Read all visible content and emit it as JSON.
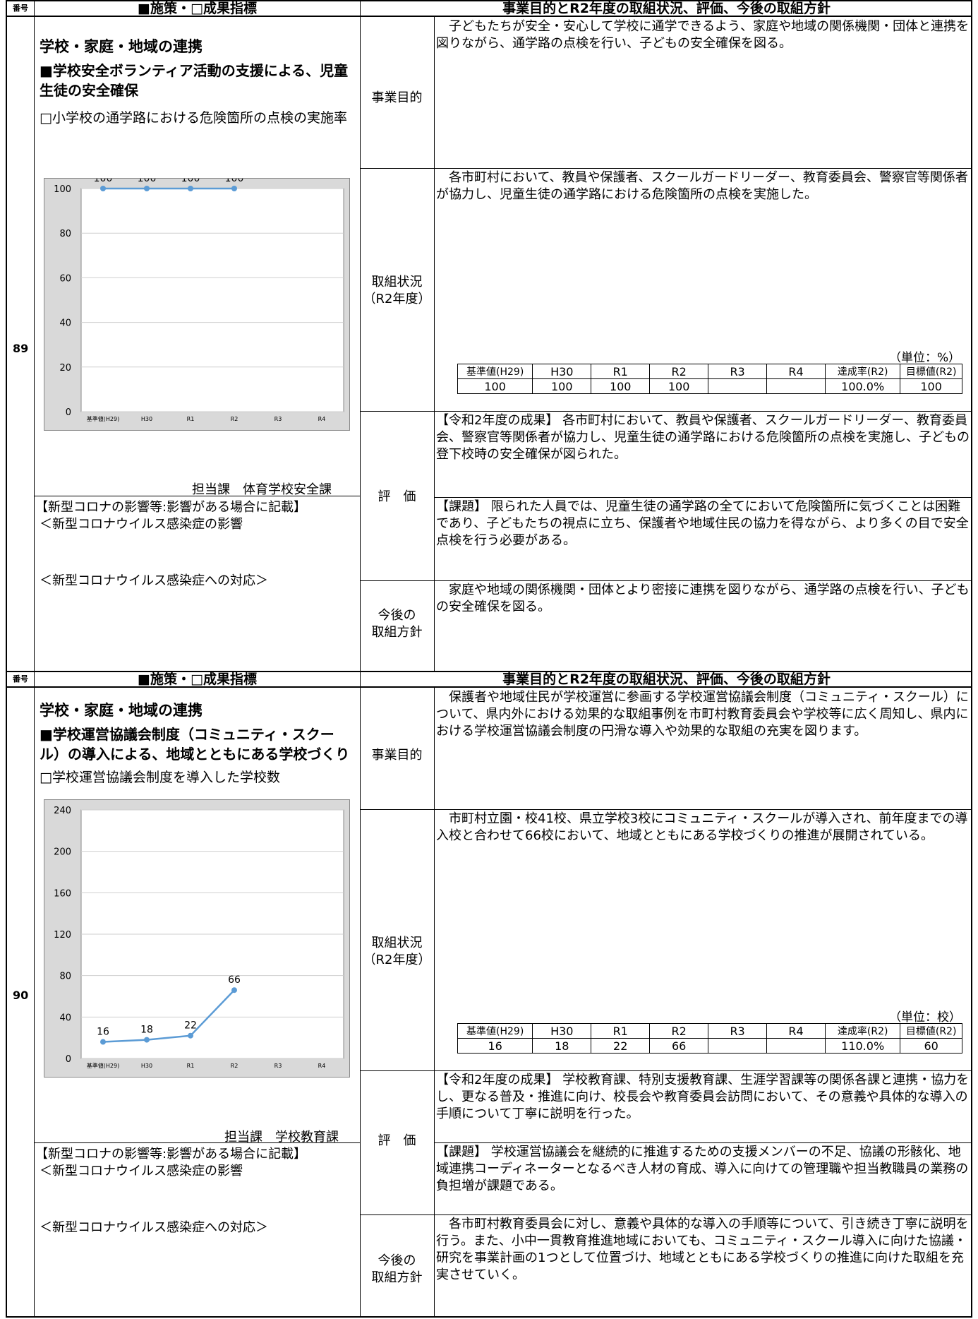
{
  "header": {
    "num_label": "番号",
    "col1_label": "■施策・□成果指標",
    "col2_label": "事業目的とR2年度の取組状況、評価、今後の取組方針"
  },
  "row_labels": {
    "purpose": "事業目的",
    "status": "取組状況\n（R2年度）",
    "eval": "評　価",
    "policy": "今後の\n取組方針"
  },
  "covid": {
    "heading": "【新型コロナの影響等:影響がある場合に記載】",
    "impact": "＜新型コロナウイルス感染症の影響",
    "response": "＜新型コロナウイルス感染症への対応＞"
  },
  "table_headers": [
    "基準値(H29)",
    "H30",
    "R1",
    "R2",
    "R3",
    "R4",
    "達成率(R2)",
    "目標値(R2)"
  ],
  "items": [
    {
      "number": "89",
      "policy_area": "学校・家庭・地域の連携",
      "measure": "■学校安全ボランティア活動の支援による、児童生徒の安全確保",
      "indicator": "□小学校の通学路における危険箇所の点検の実施率",
      "department": "担当課　体育学校安全課",
      "purpose_text": "　子どもたちが安全・安心して学校に通学できるよう、家庭や地域の関係機関・団体と連携を図りながら、通学路の点検を行い、子どもの安全確保を図る。",
      "status_text": "　各市町村において、教員や保護者、スクールガードリーダー、教育委員会、警察官等関係者が協力し、児童生徒の通学路における危険箇所の点検を実施した。",
      "unit": "（単位：%）",
      "table_values": [
        "100",
        "100",
        "100",
        "100",
        "",
        "",
        "100.0%",
        "100"
      ],
      "eval_result": "【令和2年度の成果】 各市町村において、教員や保護者、スクールガードリーダー、教育委員会、警察官等関係者が協力し、児童生徒の通学路における危険箇所の点検を実施し、子どもの登下校時の安全確保が図られた。",
      "eval_issue": "【課題】 限られた人員では、児童生徒の通学路の全てにおいて危険箇所に気づくことは困難であり、子どもたちの視点に立ち、保護者や地域住民の協力を得ながら、より多くの目で安全点検を行う必要がある。",
      "policy_text": "　家庭や地域の関係機関・団体とより密接に連携を図りながら、通学路の点検を行い、子どもの安全確保を図る。"
    },
    {
      "number": "90",
      "policy_area": "学校・家庭・地域の連携",
      "measure": "■学校運営協議会制度（コミュニティ・スクール）の導入による、地域とともにある学校づくり",
      "indicator": "□学校運営協議会制度を導入した学校数",
      "department": "担当課　学校教育課",
      "purpose_text": "　保護者や地域住民が学校運営に参画する学校運営協議会制度（コミュニティ・スクール）について、県内外における効果的な取組事例を市町村教育委員会や学校等に広く周知し、県内における学校運営協議会制度の円滑な導入や効果的な取組の充実を図ります。",
      "status_text": "　市町村立園・校41校、県立学校3校にコミュニティ・スクールが導入され、前年度までの導入校と合わせて66校において、地域とともにある学校づくりの推進が展開されている。",
      "unit": "（単位：校）",
      "table_values": [
        "16",
        "18",
        "22",
        "66",
        "",
        "",
        "110.0%",
        "60"
      ],
      "eval_result": "【令和2年度の成果】 学校教育課、特別支援教育課、生涯学習課等の関係各課と連携・協力をし、更なる普及・推進に向け、校長会や教育委員会訪問において、その意義や具体的な導入の手順について丁寧に説明を行った。",
      "eval_issue": "【課題】 学校運営協議会を継続的に推進するための支援メンバーの不足、協議の形骸化、地域連携コーディネーターとなるべき人材の育成、導入に向けての管理職や担当教職員の業務の負担増が課題である。",
      "policy_text": "　各市町村教育委員会に対し、意義や具体的な導入の手順等について、引き続き丁寧に説明を行う。また、小中一貫教育推進地域においても、コミュニティ・スクール導入に向けた協議・研究を事業計画の1つとして位置づけ、地域とともにある学校づくりの推進に向けた取組を充実させていく。"
    }
  ],
  "chart_data": [
    {
      "type": "line",
      "categories": [
        "基準値(H29)",
        "H30",
        "R1",
        "R2",
        "R3",
        "R4"
      ],
      "series": [
        {
          "values": [
            100,
            100,
            100,
            100,
            null,
            null
          ]
        }
      ],
      "data_labels": [
        "100",
        "100",
        "100",
        "100"
      ],
      "yticks": [
        "0",
        "20",
        "40",
        "60",
        "80",
        "100"
      ],
      "ylim": [
        0,
        100
      ],
      "grid": true,
      "color": "#5b9bd5"
    },
    {
      "type": "line",
      "categories": [
        "基準値(H29)",
        "H30",
        "R1",
        "R2",
        "R3",
        "R4"
      ],
      "series": [
        {
          "values": [
            16,
            18,
            22,
            66,
            null,
            null
          ]
        }
      ],
      "data_labels": [
        "16",
        "18",
        "22",
        "66"
      ],
      "yticks": [
        "0",
        "40",
        "80",
        "120",
        "160",
        "200",
        "240"
      ],
      "ylim": [
        0,
        240
      ],
      "grid": true,
      "color": "#5b9bd5"
    }
  ]
}
